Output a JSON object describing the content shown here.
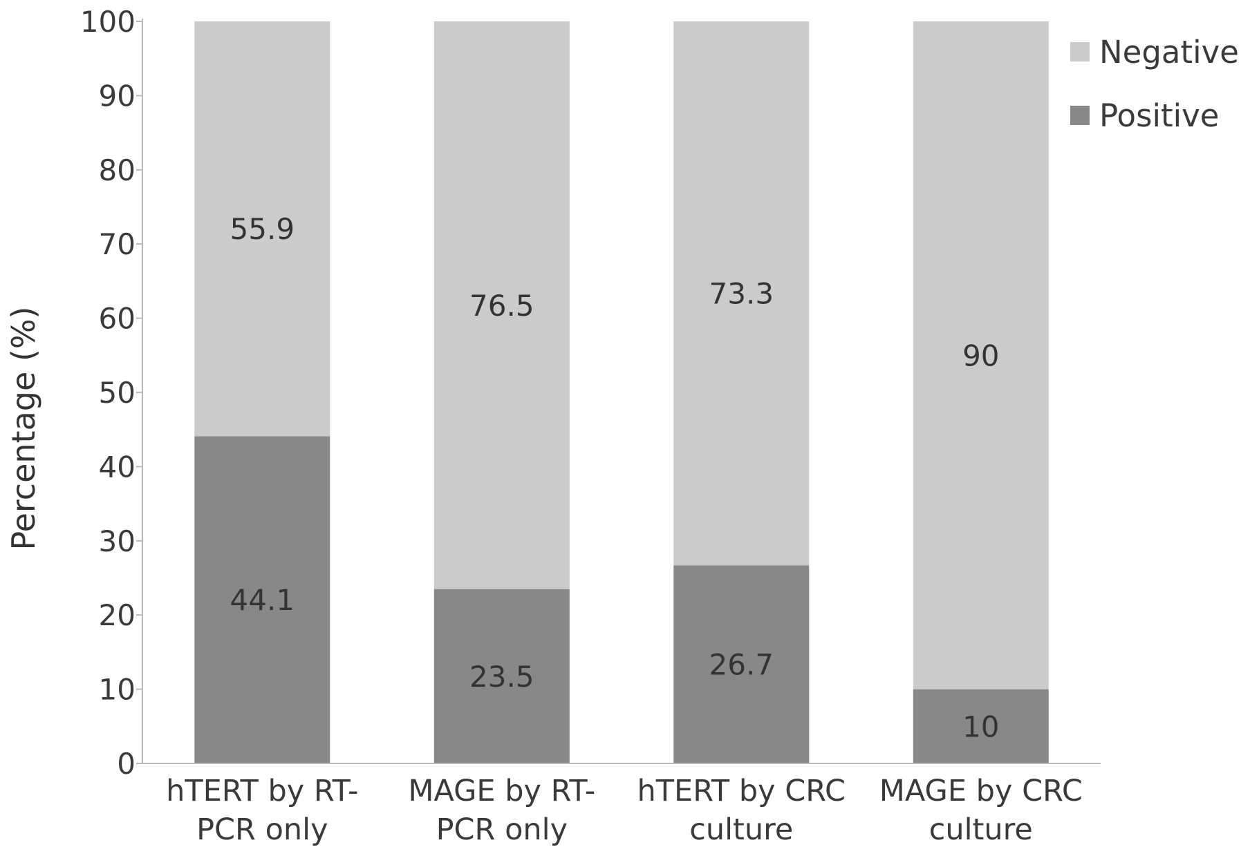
{
  "chart_data": {
    "type": "bar",
    "stacked": true,
    "ylabel": "Percentage (%)",
    "ylim": [
      0,
      100
    ],
    "yticks": [
      "0",
      "10",
      "20",
      "30",
      "40",
      "50",
      "60",
      "70",
      "80",
      "90",
      "100"
    ],
    "categories": [
      [
        "hTERT by RT-",
        "PCR only"
      ],
      [
        "MAGE by RT-",
        "PCR only"
      ],
      [
        "hTERT by CRC",
        "culture"
      ],
      [
        "MAGE by CRC",
        "culture"
      ]
    ],
    "series": [
      {
        "name": "Positive",
        "color": "#888888",
        "values": [
          44.1,
          23.5,
          26.7,
          10
        ],
        "labels": [
          "44.1",
          "23.5",
          "26.7",
          "10"
        ]
      },
      {
        "name": "Negative",
        "color": "#cbcbcb",
        "values": [
          55.9,
          76.5,
          73.3,
          90
        ],
        "labels": [
          "55.9",
          "76.5",
          "73.3",
          "90"
        ]
      }
    ],
    "legend": {
      "position": "top-right",
      "order": [
        "Negative",
        "Positive"
      ]
    },
    "grid": false
  }
}
